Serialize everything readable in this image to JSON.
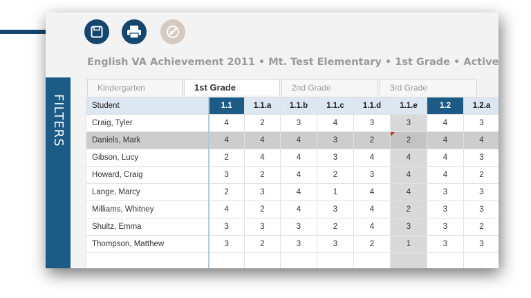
{
  "toolbar": {
    "save_icon": "save-icon",
    "print_icon": "print-icon",
    "edit_icon": "edit-icon"
  },
  "title": "English VA Achievement 2011 • Mt. Test Elementary • 1st Grade • Active",
  "filters_label": "FILTERS",
  "tabs": [
    {
      "label": "Kindergarten",
      "active": false
    },
    {
      "label": "1st Grade",
      "active": true
    },
    {
      "label": "2nd Grade",
      "active": false
    },
    {
      "label": "3rd Grade",
      "active": false
    }
  ],
  "table": {
    "student_header": "Student",
    "columns": [
      "1.1",
      "1.1.a",
      "1.1.b",
      "1.1.c",
      "1.1.d",
      "1.1.e",
      "1.2",
      "1.2.a"
    ],
    "highlighted_columns": [
      "1.1",
      "1.2"
    ],
    "shaded_column": "1.1.e",
    "rows": [
      {
        "name": "Craig, Tyler",
        "scores": [
          "4",
          "2",
          "3",
          "4",
          "3",
          "3",
          "4",
          "3"
        ]
      },
      {
        "name": "Daniels, Mark",
        "scores": [
          "4",
          "4",
          "4",
          "3",
          "2",
          "2",
          "4",
          "4"
        ],
        "selected": true,
        "flagged_column": "1.1.e"
      },
      {
        "name": "Gibson, Lucy",
        "scores": [
          "2",
          "4",
          "4",
          "3",
          "4",
          "4",
          "4",
          "3"
        ]
      },
      {
        "name": "Howard, Craig",
        "scores": [
          "3",
          "2",
          "4",
          "2",
          "3",
          "4",
          "4",
          "2"
        ]
      },
      {
        "name": "Lange, Marcy",
        "scores": [
          "2",
          "3",
          "4",
          "1",
          "4",
          "4",
          "3",
          "3"
        ]
      },
      {
        "name": "Milliams, Whitney",
        "scores": [
          "4",
          "2",
          "4",
          "3",
          "4",
          "2",
          "3",
          "3"
        ]
      },
      {
        "name": "Shultz, Emma",
        "scores": [
          "3",
          "3",
          "3",
          "2",
          "4",
          "3",
          "3",
          "2"
        ]
      },
      {
        "name": "Thompson, Matthew",
        "scores": [
          "3",
          "2",
          "3",
          "3",
          "2",
          "1",
          "3",
          "3"
        ]
      }
    ]
  },
  "colors": {
    "accent": "#1b5b86",
    "header_bg": "#dde7f1",
    "selected_row": "#cdcdcd",
    "flag": "#d21f1f"
  }
}
